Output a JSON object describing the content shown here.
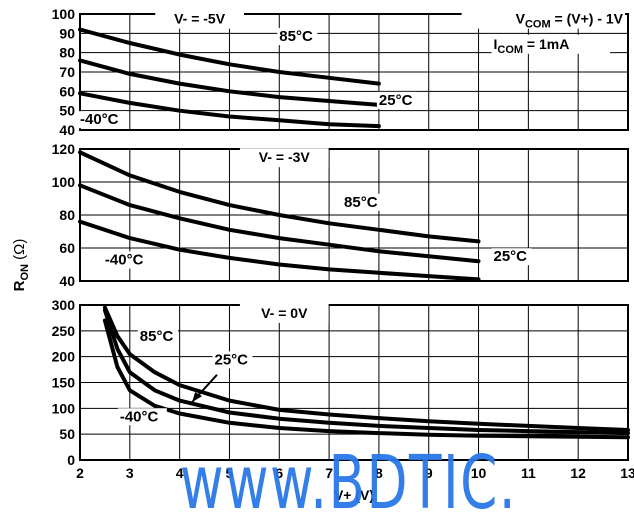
{
  "chart_data": [
    {
      "type": "line",
      "annotations": [
        "V- = -5V",
        "V_COM = (V+) - 1V",
        "I_COM = 1mA"
      ],
      "ylim": [
        40,
        100
      ],
      "yticks": [
        "100",
        "90",
        "80",
        "70",
        "60",
        "50",
        "40"
      ],
      "xlim": [
        2,
        13
      ],
      "grid": true,
      "series": [
        {
          "name": "85°C",
          "x": [
            2,
            3,
            4,
            5,
            6,
            7,
            8
          ],
          "values": [
            92,
            85,
            79,
            74,
            70,
            67,
            64
          ]
        },
        {
          "name": "25°C",
          "x": [
            2,
            3,
            4,
            5,
            6,
            7,
            8
          ],
          "values": [
            76,
            69,
            64,
            60,
            57,
            55,
            53
          ]
        },
        {
          "name": "-40°C",
          "x": [
            2,
            3,
            4,
            5,
            6,
            7,
            8
          ],
          "values": [
            59,
            54,
            50,
            47,
            45,
            43,
            42
          ]
        }
      ]
    },
    {
      "type": "line",
      "annotations": [
        "V- = -3V"
      ],
      "ylim": [
        40,
        120
      ],
      "yticks": [
        "120",
        "100",
        "80",
        "60",
        "40"
      ],
      "xlim": [
        2,
        13
      ],
      "grid": true,
      "series": [
        {
          "name": "85°C",
          "x": [
            2,
            3,
            4,
            5,
            6,
            7,
            8,
            9,
            10
          ],
          "values": [
            118,
            104,
            94,
            86,
            80,
            75,
            71,
            67,
            64
          ]
        },
        {
          "name": "25°C",
          "x": [
            2,
            3,
            4,
            5,
            6,
            7,
            8,
            9,
            10
          ],
          "values": [
            98,
            86,
            78,
            71,
            66,
            62,
            58,
            55,
            52
          ]
        },
        {
          "name": "-40°C",
          "x": [
            2,
            3,
            4,
            5,
            6,
            7,
            8,
            9,
            10
          ],
          "values": [
            76,
            66,
            59,
            54,
            50,
            47,
            45,
            43,
            41
          ]
        }
      ]
    },
    {
      "type": "line",
      "annotations": [
        "V- = 0V"
      ],
      "ylim": [
        0,
        300
      ],
      "yticks": [
        "300",
        "250",
        "200",
        "150",
        "100",
        "50",
        "0"
      ],
      "xlim": [
        2,
        13
      ],
      "xticks": [
        "2",
        "3",
        "4",
        "5",
        "6",
        "7",
        "8",
        "9",
        "10",
        "11",
        "12",
        "13"
      ],
      "xlabel": "V+ (V)",
      "grid": true,
      "series": [
        {
          "name": "85°C",
          "x": [
            2.5,
            2.75,
            3,
            3.5,
            4,
            5,
            6,
            7,
            8,
            9,
            10,
            11,
            12,
            13
          ],
          "values": [
            295,
            240,
            205,
            170,
            145,
            115,
            97,
            88,
            81,
            75,
            70,
            66,
            62,
            58
          ]
        },
        {
          "name": "25°C",
          "x": [
            2.5,
            2.75,
            3,
            3.5,
            4,
            5,
            6,
            7,
            8,
            9,
            10,
            11,
            12,
            13
          ],
          "values": [
            290,
            215,
            170,
            135,
            115,
            92,
            80,
            72,
            66,
            62,
            58,
            56,
            54,
            52
          ]
        },
        {
          "name": "-40°C",
          "x": [
            2.5,
            2.75,
            3,
            3.5,
            4,
            5,
            6,
            7,
            8,
            9,
            10,
            11,
            12,
            13
          ],
          "values": [
            270,
            180,
            135,
            105,
            90,
            72,
            62,
            56,
            52,
            49,
            47,
            46,
            45,
            44
          ]
        }
      ]
    }
  ],
  "shared": {
    "ylabel_main": "R",
    "ylabel_sub": "ON",
    "ylabel_unit": " (Ω)"
  },
  "watermark": "www.BDTIC."
}
